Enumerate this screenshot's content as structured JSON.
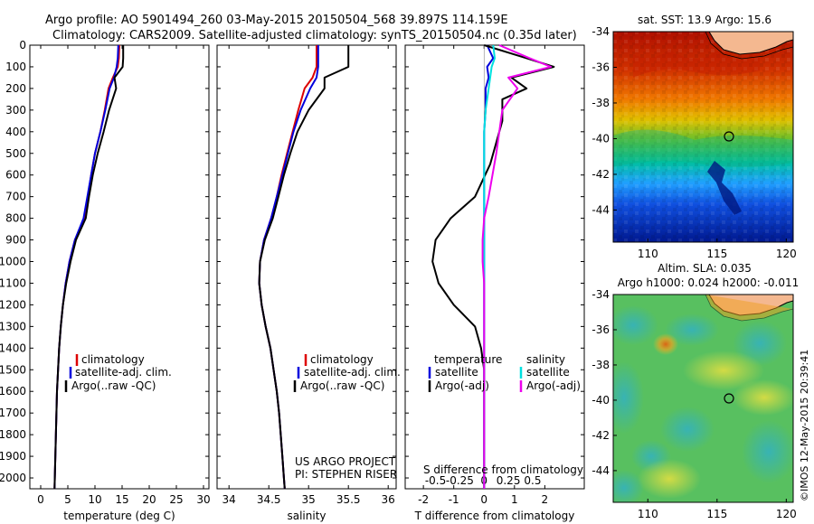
{
  "header": {
    "line1": "Argo profile: AO 5901494_260 03-May-2015 20150504_568 39.897S 114.159E",
    "line2": "Climatology: CARS2009. Satellite-adjusted climatology: synTS_20150504.nc (0.35d later)"
  },
  "colors": {
    "climatology": "#dd0000",
    "satellite": "#0000dd",
    "argo": "#000000",
    "sat_salinity": "#00e0e0",
    "argo_salinity": "#ee00ee"
  },
  "chart_data": [
    {
      "type": "line",
      "panel": "temperature",
      "xlabel": "temperature (deg C)",
      "ylabel": "",
      "xlim": [
        -2,
        31
      ],
      "ylim": [
        2050,
        0
      ],
      "xticks": [
        0,
        5,
        10,
        15,
        20,
        25,
        30
      ],
      "yticks": [
        0,
        100,
        200,
        300,
        400,
        500,
        600,
        700,
        800,
        900,
        1000,
        1100,
        1200,
        1300,
        1400,
        1500,
        1600,
        1700,
        1800,
        1900,
        2000
      ],
      "legend": [
        "climatology",
        "satellite-adj. clim.",
        "Argo(..raw -QC)"
      ],
      "series": [
        {
          "name": "climatology",
          "color_key": "climatology",
          "points": [
            [
              14.5,
              0
            ],
            [
              14.4,
              60
            ],
            [
              14.2,
              100
            ],
            [
              13.3,
              150
            ],
            [
              12.5,
              200
            ],
            [
              11.8,
              300
            ],
            [
              11,
              400
            ],
            [
              10,
              500
            ],
            [
              9.3,
              600
            ],
            [
              8.7,
              700
            ],
            [
              8,
              800
            ],
            [
              6.3,
              900
            ],
            [
              5.3,
              1000
            ],
            [
              4.6,
              1100
            ],
            [
              4.1,
              1200
            ],
            [
              3.7,
              1300
            ],
            [
              3.4,
              1400
            ],
            [
              3.2,
              1500
            ],
            [
              3,
              1600
            ],
            [
              2.9,
              1700
            ],
            [
              2.8,
              1800
            ],
            [
              2.7,
              1900
            ],
            [
              2.6,
              2000
            ],
            [
              2.55,
              2050
            ]
          ]
        },
        {
          "name": "satellite-adj. clim.",
          "color_key": "satellite",
          "points": [
            [
              14.3,
              0
            ],
            [
              14.2,
              60
            ],
            [
              14,
              100
            ],
            [
              13.5,
              150
            ],
            [
              12.7,
              200
            ],
            [
              11.9,
              300
            ],
            [
              11,
              400
            ],
            [
              10,
              500
            ],
            [
              9.3,
              600
            ],
            [
              8.6,
              700
            ],
            [
              7.9,
              800
            ],
            [
              6.3,
              900
            ],
            [
              5.3,
              1000
            ],
            [
              4.6,
              1100
            ],
            [
              4.1,
              1200
            ],
            [
              3.7,
              1300
            ],
            [
              3.4,
              1400
            ],
            [
              3.2,
              1500
            ],
            [
              3,
              1600
            ],
            [
              2.9,
              1700
            ],
            [
              2.8,
              1800
            ],
            [
              2.7,
              1900
            ],
            [
              2.6,
              2000
            ],
            [
              2.55,
              2050
            ]
          ]
        },
        {
          "name": "Argo(..raw -QC)",
          "color_key": "argo",
          "points": [
            [
              15.2,
              0
            ],
            [
              15.2,
              60
            ],
            [
              15.1,
              100
            ],
            [
              13.6,
              150
            ],
            [
              13.9,
              200
            ],
            [
              12.6,
              300
            ],
            [
              11.6,
              400
            ],
            [
              10.5,
              500
            ],
            [
              9.6,
              600
            ],
            [
              8.9,
              700
            ],
            [
              8.3,
              800
            ],
            [
              6.5,
              900
            ],
            [
              5.5,
              1000
            ],
            [
              4.7,
              1100
            ],
            [
              4.1,
              1200
            ],
            [
              3.7,
              1300
            ],
            [
              3.4,
              1400
            ],
            [
              3.2,
              1500
            ],
            [
              3,
              1600
            ],
            [
              2.9,
              1700
            ],
            [
              2.8,
              1800
            ],
            [
              2.7,
              1900
            ],
            [
              2.6,
              2000
            ],
            [
              2.55,
              2050
            ]
          ]
        }
      ]
    },
    {
      "type": "line",
      "panel": "salinity",
      "xlabel": "salinity",
      "ylabel": "",
      "xlim": [
        33.85,
        36.1
      ],
      "ylim": [
        2050,
        0
      ],
      "xticks": [
        34,
        34.5,
        35,
        35.5,
        36
      ],
      "legend": [
        "climatology",
        "satellite-adj. clim.",
        "Argo(..raw -QC)"
      ],
      "series": [
        {
          "name": "climatology",
          "color_key": "climatology",
          "points": [
            [
              35.1,
              0
            ],
            [
              35.1,
              100
            ],
            [
              35.05,
              150
            ],
            [
              34.95,
              200
            ],
            [
              34.87,
              300
            ],
            [
              34.8,
              400
            ],
            [
              34.73,
              500
            ],
            [
              34.66,
              600
            ],
            [
              34.6,
              700
            ],
            [
              34.53,
              800
            ],
            [
              34.44,
              900
            ],
            [
              34.39,
              1000
            ],
            [
              34.38,
              1100
            ],
            [
              34.41,
              1200
            ],
            [
              34.46,
              1300
            ],
            [
              34.52,
              1400
            ],
            [
              34.56,
              1500
            ],
            [
              34.6,
              1600
            ],
            [
              34.63,
              1700
            ],
            [
              34.65,
              1800
            ],
            [
              34.67,
              1900
            ],
            [
              34.69,
              2000
            ],
            [
              34.7,
              2050
            ]
          ]
        },
        {
          "name": "satellite-adj. clim.",
          "color_key": "satellite",
          "points": [
            [
              35.12,
              0
            ],
            [
              35.12,
              100
            ],
            [
              35.1,
              150
            ],
            [
              35.02,
              200
            ],
            [
              34.9,
              300
            ],
            [
              34.81,
              400
            ],
            [
              34.74,
              500
            ],
            [
              34.67,
              600
            ],
            [
              34.6,
              700
            ],
            [
              34.53,
              800
            ],
            [
              34.44,
              900
            ],
            [
              34.39,
              1000
            ],
            [
              34.38,
              1100
            ],
            [
              34.41,
              1200
            ],
            [
              34.46,
              1300
            ],
            [
              34.52,
              1400
            ],
            [
              34.56,
              1500
            ],
            [
              34.6,
              1600
            ],
            [
              34.63,
              1700
            ],
            [
              34.65,
              1800
            ],
            [
              34.67,
              1900
            ],
            [
              34.69,
              2000
            ],
            [
              34.7,
              2050
            ]
          ]
        },
        {
          "name": "Argo(..raw -QC)",
          "color_key": "argo",
          "points": [
            [
              35.5,
              0
            ],
            [
              35.5,
              60
            ],
            [
              35.5,
              100
            ],
            [
              35.2,
              150
            ],
            [
              35.2,
              200
            ],
            [
              35,
              300
            ],
            [
              34.86,
              400
            ],
            [
              34.77,
              500
            ],
            [
              34.69,
              600
            ],
            [
              34.62,
              700
            ],
            [
              34.55,
              800
            ],
            [
              34.45,
              900
            ],
            [
              34.39,
              1000
            ],
            [
              34.38,
              1100
            ],
            [
              34.41,
              1200
            ],
            [
              34.46,
              1300
            ],
            [
              34.52,
              1400
            ],
            [
              34.56,
              1500
            ],
            [
              34.6,
              1600
            ],
            [
              34.63,
              1700
            ],
            [
              34.65,
              1800
            ],
            [
              34.67,
              1900
            ],
            [
              34.69,
              2000
            ],
            [
              34.7,
              2050
            ]
          ]
        }
      ],
      "annotation": [
        "US ARGO PROJECT",
        "PI: STEPHEN RISER"
      ]
    },
    {
      "type": "line",
      "panel": "difference",
      "xlabel": "T difference from climatology",
      "xlabel_top": "S difference from climatology",
      "xlim": [
        -2.6,
        3.3
      ],
      "ylim": [
        2050,
        0
      ],
      "xticks": [
        -2,
        -1,
        0,
        1,
        2
      ],
      "xticks_secondary": [
        "-0.5",
        "-0.25",
        "0",
        "0.25",
        "0.5"
      ],
      "legend_headers": [
        "temperature",
        "salinity"
      ],
      "legend": [
        "satellite",
        "Argo(-adj)",
        "satellite",
        "Argo(-adj)"
      ],
      "series": [
        {
          "name": "satellite",
          "color_key": "satellite",
          "points": [
            [
              0.1,
              0
            ],
            [
              0.3,
              60
            ],
            [
              0.1,
              100
            ],
            [
              0.15,
              150
            ],
            [
              0.05,
              200
            ],
            [
              0.05,
              300
            ],
            [
              0,
              400
            ],
            [
              0,
              500
            ],
            [
              0,
              700
            ],
            [
              0,
              800
            ],
            [
              0,
              1000
            ],
            [
              0,
              2050
            ]
          ]
        },
        {
          "name": "Argo(-adj)",
          "color_key": "argo",
          "points": [
            [
              0,
              0
            ],
            [
              1.4,
              60
            ],
            [
              2.3,
              100
            ],
            [
              0.9,
              150
            ],
            [
              1.4,
              200
            ],
            [
              0.6,
              250
            ],
            [
              0.6,
              350
            ],
            [
              0.4,
              450
            ],
            [
              0.2,
              550
            ],
            [
              -0.3,
              700
            ],
            [
              -1.1,
              800
            ],
            [
              -1.6,
              900
            ],
            [
              -1.7,
              1000
            ],
            [
              -1.5,
              1100
            ],
            [
              -1,
              1200
            ],
            [
              -0.3,
              1300
            ],
            [
              -0.1,
              1400
            ],
            [
              0,
              1500
            ],
            [
              0,
              2050
            ]
          ]
        },
        {
          "name": "satellite",
          "color_key": "sat_salinity",
          "points": [
            [
              0.3,
              0
            ],
            [
              0.35,
              60
            ],
            [
              0.25,
              100
            ],
            [
              0.15,
              200
            ],
            [
              0.05,
              300
            ],
            [
              0,
              400
            ],
            [
              0,
              1000
            ],
            [
              0,
              2050
            ]
          ]
        },
        {
          "name": "Argo(-adj)",
          "color_key": "argo_salinity",
          "points": [
            [
              0.5,
              0
            ],
            [
              1.5,
              60
            ],
            [
              2.2,
              100
            ],
            [
              0.8,
              150
            ],
            [
              1.1,
              200
            ],
            [
              0.6,
              300
            ],
            [
              0.4,
              500
            ],
            [
              0.15,
              700
            ],
            [
              0,
              800
            ],
            [
              -0.05,
              900
            ],
            [
              -0.05,
              1000
            ],
            [
              0,
              1100
            ],
            [
              0,
              2050
            ]
          ]
        }
      ]
    },
    {
      "type": "heatmap",
      "panel": "sst_map",
      "title": "sat. SST: 13.9 Argo: 15.6",
      "xticks": [
        110,
        115,
        120
      ],
      "yticks": [
        -34,
        -36,
        -38,
        -40,
        -42,
        -44
      ],
      "xlim": [
        107.5,
        120.5
      ],
      "ylim": [
        -45.8,
        -34
      ],
      "marker": {
        "lon": 114.159,
        "lat": -39.897
      }
    },
    {
      "type": "heatmap",
      "panel": "sla_map",
      "title": "Altim. SLA: 0.035",
      "subtitle": "Argo h1000: 0.024 h2000: -0.011",
      "xticks": [
        110,
        115,
        120
      ],
      "yticks": [
        -34,
        -36,
        -38,
        -40,
        -42,
        -44
      ],
      "xlim": [
        107.5,
        120.5
      ],
      "ylim": [
        -45.8,
        -34
      ],
      "marker": {
        "lon": 114.159,
        "lat": -39.897
      }
    }
  ],
  "footer": {
    "credit": "©IMOS 12-May-2015 20:39:41"
  }
}
